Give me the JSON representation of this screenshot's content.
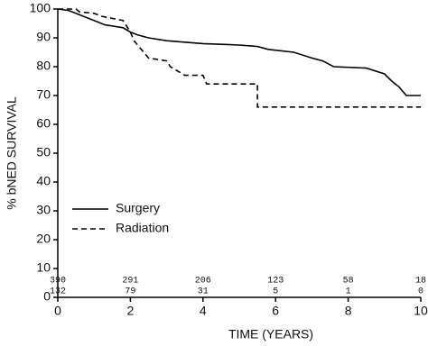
{
  "chart_data": {
    "type": "line",
    "xlabel": "TIME (YEARS)",
    "ylabel": "% bNED SURVIVAL",
    "xlim": [
      0,
      10
    ],
    "xticks": [
      0,
      2,
      4,
      6,
      8,
      10
    ],
    "ylim": [
      0,
      100
    ],
    "yticks": [
      0,
      10,
      20,
      30,
      40,
      50,
      60,
      70,
      80,
      90,
      100
    ],
    "series": [
      {
        "name": "Surgery",
        "color": "#000000",
        "linestyle": "solid",
        "x": [
          0,
          0.3,
          0.5,
          0.8,
          1,
          1.3,
          1.8,
          2,
          2.2,
          2.5,
          3,
          3.5,
          4,
          5,
          5.5,
          5.8,
          6.5,
          7,
          7.3,
          7.6,
          8.5,
          9,
          9.2,
          9.4,
          9.6,
          10
        ],
        "values": [
          100,
          99.5,
          98.5,
          97,
          96,
          94.5,
          93.5,
          92,
          91,
          90,
          89,
          88.5,
          88,
          87.5,
          87,
          86,
          85,
          83,
          82,
          80,
          79.5,
          77.5,
          75,
          73,
          70,
          70
        ]
      },
      {
        "name": "Radiation",
        "color": "#000000",
        "linestyle": "dashed",
        "x": [
          0,
          0.5,
          0.6,
          1,
          1.2,
          1.8,
          2,
          2.1,
          2.3,
          2.5,
          3,
          3.1,
          3.5,
          4,
          4.1,
          5.5,
          5.5,
          10
        ],
        "values": [
          100,
          100,
          99,
          98.5,
          97.5,
          96,
          92,
          89,
          86,
          83,
          82,
          80,
          77,
          77,
          74,
          74,
          66,
          66
        ]
      }
    ],
    "at_risk": [
      [
        390,
        291,
        206,
        123,
        58,
        18
      ],
      [
        132,
        79,
        31,
        5,
        1,
        0
      ]
    ]
  }
}
